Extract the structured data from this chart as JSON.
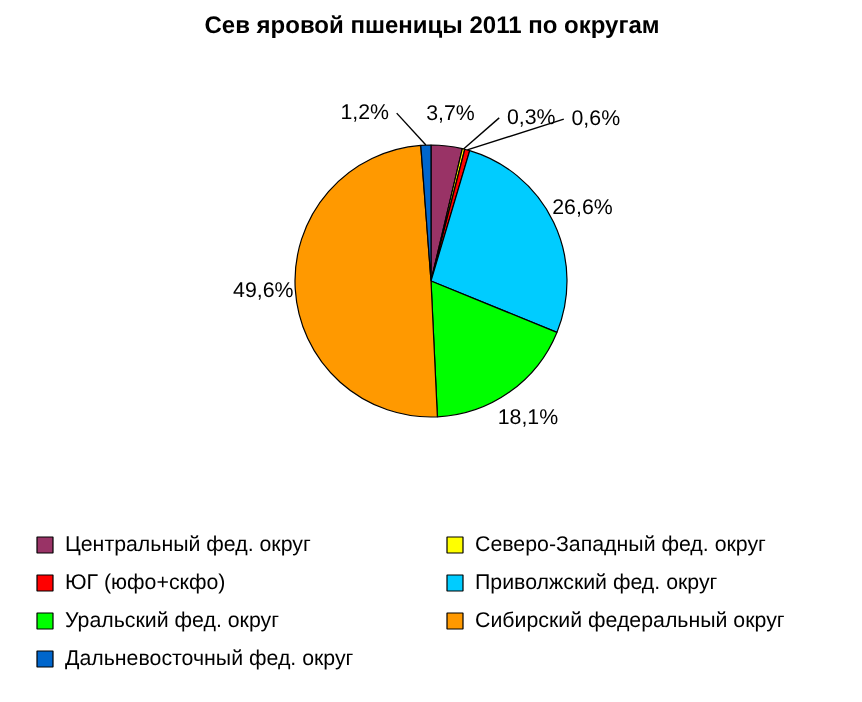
{
  "chart_data": {
    "type": "pie",
    "title": "Сев яровой пшеницы 2011 по округам",
    "categories": [
      "Центральный фед. округ",
      "Северо-Западный фед. округ",
      "ЮГ (юфо+скфо)",
      "Приволжский фед. округ",
      "Уральский фед. округ",
      "Сибирский федеральный округ",
      "Дальневосточный фед. округ"
    ],
    "values": [
      3.7,
      0.3,
      0.6,
      26.6,
      18.1,
      49.6,
      1.2
    ],
    "value_labels": [
      "3,7%",
      "0,3%",
      "0,6%",
      "26,6%",
      "18,1%",
      "49,6%",
      "1,2%"
    ],
    "colors": [
      "#993366",
      "#ffff00",
      "#ff0000",
      "#00ccff",
      "#00ff00",
      "#ff9900",
      "#0066cc"
    ],
    "legend": "bottom"
  }
}
